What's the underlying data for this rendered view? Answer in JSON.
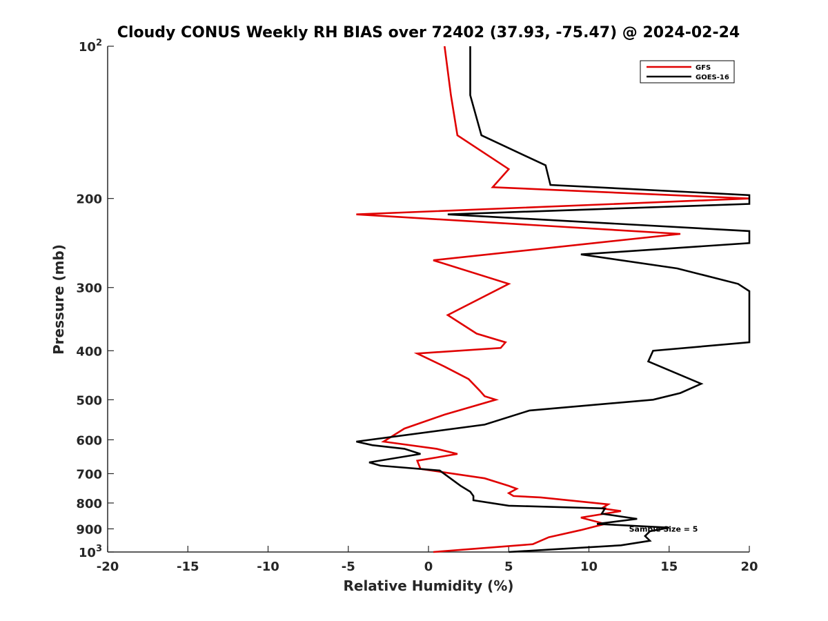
{
  "chart_data": {
    "type": "line",
    "title": "Cloudy CONUS Weekly RH BIAS over 72402 (37.93, -75.47) @ 2024-02-24",
    "xlabel": "Relative Humidity (%)",
    "ylabel": "Pressure (mb)",
    "xlim": [
      -20,
      20
    ],
    "ylim": [
      100,
      1000
    ],
    "y_scale": "log",
    "y_reversed": true,
    "grid": false,
    "legend_position": "top-right",
    "x_ticks": [
      "-20",
      "-15",
      "-10",
      "-5",
      "0",
      "5",
      "10",
      "15",
      "20"
    ],
    "y_ticks": [
      {
        "value": 100,
        "base": "10",
        "exp": "2"
      },
      {
        "value": 200,
        "label": "200"
      },
      {
        "value": 300,
        "label": "300"
      },
      {
        "value": 400,
        "label": "400"
      },
      {
        "value": 500,
        "label": "500"
      },
      {
        "value": 600,
        "label": "600"
      },
      {
        "value": 700,
        "label": "700"
      },
      {
        "value": 800,
        "label": "800"
      },
      {
        "value": 900,
        "label": "900"
      },
      {
        "value": 1000,
        "base": "10",
        "exp": "3"
      }
    ],
    "annotation": {
      "text": "Sample Size = 5",
      "x": 12.5,
      "y": 900
    },
    "series": [
      {
        "name": "GFS",
        "color": "#e00000",
        "points": [
          [
            1,
            100
          ],
          [
            1.4,
            125
          ],
          [
            1.8,
            150
          ],
          [
            5,
            175
          ],
          [
            4,
            190
          ],
          [
            20,
            200
          ],
          [
            -4.5,
            215
          ],
          [
            15.7,
            235
          ],
          [
            0.3,
            265
          ],
          [
            5,
            295
          ],
          [
            1.2,
            340
          ],
          [
            3,
            370
          ],
          [
            4.8,
            385
          ],
          [
            4.5,
            395
          ],
          [
            -0.7,
            405
          ],
          [
            1,
            430
          ],
          [
            2.5,
            455
          ],
          [
            3.2,
            480
          ],
          [
            3.5,
            492
          ],
          [
            4.2,
            500
          ],
          [
            1,
            535
          ],
          [
            -1.5,
            570
          ],
          [
            -2.8,
            605
          ],
          [
            0.5,
            625
          ],
          [
            1.8,
            640
          ],
          [
            -0.7,
            660
          ],
          [
            -0.5,
            685
          ],
          [
            3.5,
            715
          ],
          [
            5,
            740
          ],
          [
            5.5,
            750
          ],
          [
            5,
            765
          ],
          [
            5.3,
            775
          ],
          [
            7,
            780
          ],
          [
            11.2,
            805
          ],
          [
            10.8,
            820
          ],
          [
            12,
            830
          ],
          [
            9.5,
            855
          ],
          [
            11,
            880
          ],
          [
            9.5,
            905
          ],
          [
            7.5,
            935
          ],
          [
            6.5,
            965
          ],
          [
            0.3,
            1000
          ]
        ]
      },
      {
        "name": "GOES-16",
        "color": "#000000",
        "points": [
          [
            2.6,
            100
          ],
          [
            2.6,
            125
          ],
          [
            3.3,
            150
          ],
          [
            7.3,
            172
          ],
          [
            7.6,
            188
          ],
          [
            20,
            197
          ],
          [
            20,
            205
          ],
          [
            1.2,
            215
          ],
          [
            20,
            232
          ],
          [
            20,
            245
          ],
          [
            9.5,
            258
          ],
          [
            15.5,
            275
          ],
          [
            19.3,
            295
          ],
          [
            20,
            305
          ],
          [
            20,
            385
          ],
          [
            14,
            400
          ],
          [
            13.7,
            420
          ],
          [
            17,
            465
          ],
          [
            15.7,
            485
          ],
          [
            14,
            500
          ],
          [
            6.3,
            525
          ],
          [
            3.5,
            560
          ],
          [
            -4.5,
            605
          ],
          [
            -3.5,
            615
          ],
          [
            -1.5,
            625
          ],
          [
            -0.5,
            640
          ],
          [
            -3.7,
            665
          ],
          [
            -3,
            675
          ],
          [
            0.7,
            690
          ],
          [
            2,
            740
          ],
          [
            2.6,
            760
          ],
          [
            2.8,
            775
          ],
          [
            2.8,
            790
          ],
          [
            5,
            810
          ],
          [
            11,
            820
          ],
          [
            10.8,
            840
          ],
          [
            13,
            860
          ],
          [
            10.5,
            880
          ],
          [
            15,
            895
          ],
          [
            13.8,
            910
          ],
          [
            13.5,
            930
          ],
          [
            13.8,
            950
          ],
          [
            12,
            970
          ],
          [
            5,
            1000
          ]
        ]
      }
    ]
  }
}
